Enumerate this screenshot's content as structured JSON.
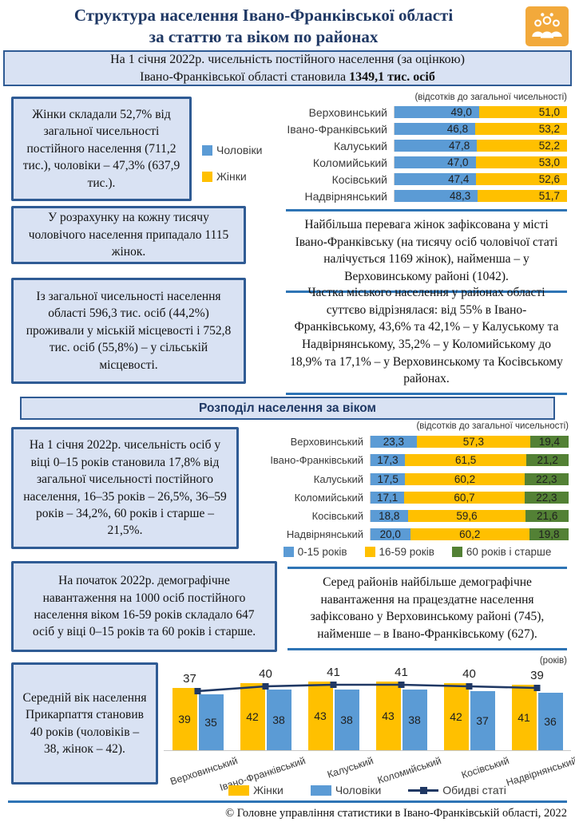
{
  "page": {
    "title_line1": "Структура  населення  Івано-Франківської  області",
    "title_line2": "за статтю  та віком по районах",
    "footer": "© Головне управління  статистики в Івано-Франківській  області, 2022"
  },
  "icons": {
    "header_icon": "people-group"
  },
  "colors": {
    "male_blue": "#5B9BD5",
    "female_yellow": "#FFC000",
    "age60_green": "#538135",
    "line_navy": "#203864",
    "box_bg": "#D9E2F3",
    "box_border": "#2F5B94",
    "rule_blue": "#2E74B5",
    "title_navy": "#1F3864"
  },
  "banner": {
    "line1": "На 1 січня 2022р. чисельність  постійного  населення  (за оцінкою)",
    "line2_text": "Івано-Франківської  області становила",
    "line2_bold": "1349,1 тис. осіб"
  },
  "section2_header": "Розподіл населення  за віком",
  "text_boxes": {
    "women_share": "Жінки  складали  52,7% від загальної  чисельності постійного  населення (711,2 тис.),  чоловіки – 47,3% (637,9 тис.).",
    "per_thousand": "У розрахунку  на  кожну  тисячу чоловічого населення  припадало 1115 жінок.",
    "urban_rural": "Із загальної  чисельності  населення області 596,3 тис.  осіб (44,2%) проживали  у міській місцевості і 752,8 тис.  осіб (55,8%) – у сільській місцевості.",
    "age_shares": "На 1 січня 2022р. чисельність  осіб у віці 0–15 років  становила  17,8% від загальної  чисельності постійного  населення, 16–35 років – 26,5%, 36–59 років – 34,2%, 60 років і старше  – 21,5%.",
    "demo_load": "На початок  2022р.  демографічне навантаження  на  1000 осіб постійного  населення  віком 16-59 років складало  647 осіб у віці 0–15 років та 60 років і старше.",
    "avg_age": "Середній  вік населення Прикарпаття становив  40 років (чоловіків  –  38, жінок  –  42)."
  },
  "right_texts": {
    "women_advantage": "Найбільша  перевага  жінок  зафіксована у місті Івано-Франківську  (на тисячу осіб чоловічої статі налічується  1169 жінок), найменша  – у Верховинському  районі  (1042).",
    "urban_share": "Частка міського населення  у районах  області суттєво  відрізнялася: від 55% в Івано-Франківському,  43,6% та 42,1% – у Калуському  та Надвірнянському, 35,2% – у Коломийському  до 18,9% та 17,1% – у Верховинському  та Косівському районах.",
    "demo_load_districts": "Серед  районів  найбільше  демографічне навантаження  на  працездатне  населення зафіксовано у Верховинському  районі  (745), найменше  – в Івано-Франківському  (627)."
  },
  "chart_data": [
    {
      "id": "sex_by_district",
      "type": "bar",
      "subtype": "horizontal-stacked",
      "note": "(відсотків до загальної чисельності)",
      "legend_position": "left",
      "categories": [
        "Верховинський",
        "Івано-Франківський",
        "Калуський",
        "Коломийський",
        "Косівський",
        "Надвірнянський"
      ],
      "series": [
        {
          "name": "Чоловіки",
          "color": "#5B9BD5",
          "values": [
            49.0,
            46.8,
            47.8,
            47.0,
            47.4,
            48.3
          ],
          "labels": [
            "49,0",
            "46,8",
            "47,8",
            "47,0",
            "47,4",
            "48,3"
          ]
        },
        {
          "name": "Жінки",
          "color": "#FFC000",
          "values": [
            51.0,
            53.2,
            52.2,
            53.0,
            52.6,
            51.7
          ],
          "labels": [
            "51,0",
            "53,2",
            "52,2",
            "53,0",
            "52,6",
            "51,7"
          ]
        }
      ]
    },
    {
      "id": "age_by_district",
      "type": "bar",
      "subtype": "horizontal-stacked",
      "note": "(відсотків до загальної чисельності)",
      "legend_position": "bottom",
      "categories": [
        "Верховинський",
        "Івано-Франківський",
        "Калуський",
        "Коломийський",
        "Косівський",
        "Надвірнянський"
      ],
      "series": [
        {
          "name": "0-15 років",
          "color": "#5B9BD5",
          "values": [
            23.3,
            17.3,
            17.5,
            17.1,
            18.8,
            20.0
          ],
          "labels": [
            "23,3",
            "17,3",
            "17,5",
            "17,1",
            "18,8",
            "20,0"
          ]
        },
        {
          "name": "16-59 років",
          "color": "#FFC000",
          "values": [
            57.3,
            61.5,
            60.2,
            60.7,
            59.6,
            60.2
          ],
          "labels": [
            "57,3",
            "61,5",
            "60,2",
            "60,7",
            "59,6",
            "60,2"
          ]
        },
        {
          "name": "60 років і старше",
          "color": "#538135",
          "values": [
            19.4,
            21.2,
            22.3,
            22.3,
            21.6,
            19.8
          ],
          "labels": [
            "19,4",
            "21,2",
            "22,3",
            "22,3",
            "21,6",
            "19,8"
          ]
        }
      ]
    },
    {
      "id": "avg_age_by_district",
      "type": "bar",
      "subtype": "grouped-vertical-with-line",
      "note": "(років)",
      "legend_position": "bottom",
      "ylim": [
        0,
        45
      ],
      "categories": [
        "Верховинський",
        "Івано-Франківський",
        "Калуський",
        "Коломийський",
        "Косівський",
        "Надвірнянський"
      ],
      "series": [
        {
          "name": "Жінки",
          "kind": "bar",
          "color": "#FFC000",
          "values": [
            39,
            42,
            43,
            43,
            42,
            41
          ]
        },
        {
          "name": "Чоловіки",
          "kind": "bar",
          "color": "#5B9BD5",
          "values": [
            35,
            38,
            38,
            38,
            37,
            36
          ]
        },
        {
          "name": "Обидві статі",
          "kind": "line",
          "color": "#203864",
          "values": [
            37,
            40,
            41,
            41,
            40,
            39
          ]
        }
      ]
    }
  ]
}
